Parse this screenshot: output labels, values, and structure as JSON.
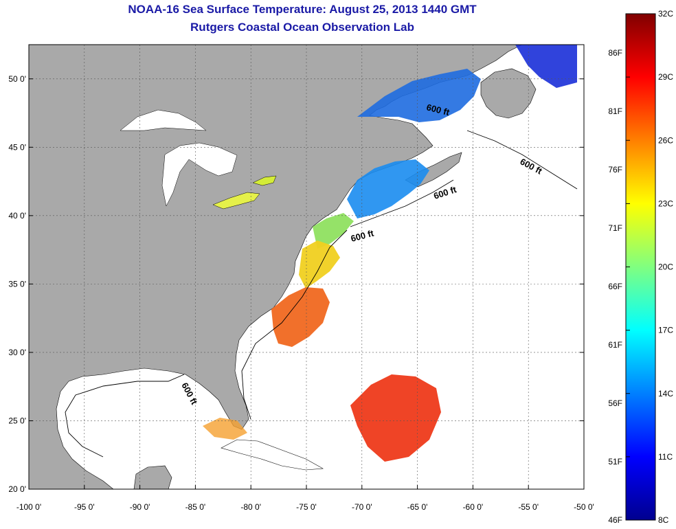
{
  "header": {
    "title": "NOAA-16 Sea Surface Temperature:  August 25, 2013 1440 GMT",
    "subtitle": "Rutgers Coastal Ocean Observation Lab"
  },
  "axes": {
    "x_ticks": [
      "-100 0'",
      "-95 0'",
      "-90 0'",
      "-85 0'",
      "-80 0'",
      "-75 0'",
      "-70 0'",
      "-65 0'",
      "-60 0'",
      "-55 0'",
      "-50 0'"
    ],
    "x_values": [
      -100,
      -95,
      -90,
      -85,
      -80,
      -75,
      -70,
      -65,
      -60,
      -55,
      -50
    ],
    "y_ticks": [
      "20 0'",
      "25 0'",
      "30 0'",
      "35 0'",
      "40 0'",
      "45 0'",
      "50 0'"
    ],
    "y_values": [
      20,
      25,
      30,
      35,
      40,
      45,
      50
    ],
    "lon_range": [
      -100,
      -50
    ],
    "lat_range": [
      20,
      52.5
    ]
  },
  "contour_labels": [
    "600 ft",
    "600 ft",
    "600 ft",
    "600 ft",
    "600 ft"
  ],
  "colorbar": {
    "celsius_labels": [
      "32C",
      "29C",
      "26C",
      "23C",
      "20C",
      "17C",
      "14C",
      "11C",
      "8C"
    ],
    "fahrenheit_labels": [
      "86F",
      "81F",
      "76F",
      "71F",
      "66F",
      "61F",
      "56F",
      "51F",
      "46F"
    ],
    "range_c": [
      8,
      32
    ],
    "colors": [
      "#00008f",
      "#0000ff",
      "#0080ff",
      "#00ffff",
      "#80ff80",
      "#ffff00",
      "#ff8000",
      "#ff0000",
      "#800000"
    ]
  },
  "colors": {
    "land": "#a9a9a9",
    "ocean": "#ffffff",
    "title": "#1a1aa6"
  }
}
